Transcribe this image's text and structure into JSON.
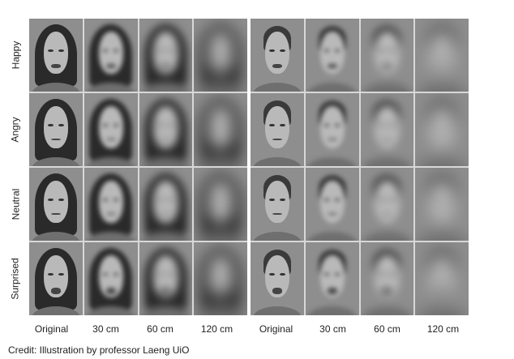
{
  "rows": [
    "Happy",
    "Angry",
    "Neutral",
    "Surprised"
  ],
  "columns": [
    "Original",
    "30 cm",
    "60 cm",
    "120 cm",
    "Original",
    "30 cm",
    "60 cm",
    "120 cm"
  ],
  "panels": [
    {
      "subject": "female",
      "blur_levels": [
        0,
        3,
        5,
        9
      ]
    },
    {
      "subject": "male",
      "blur_levels": [
        0,
        3,
        5,
        9
      ]
    }
  ],
  "credit": "Credit: Illustration by professor Laeng UiO"
}
